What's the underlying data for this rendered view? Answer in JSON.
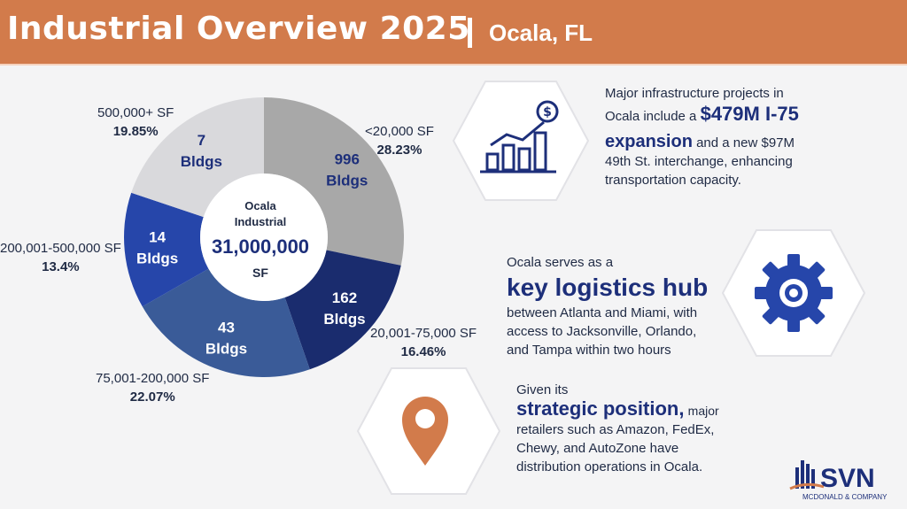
{
  "header": {
    "title": "Industrial Overview 2025",
    "location": "Ocala, FL",
    "bg_color": "#d27b4b"
  },
  "chart_data": {
    "type": "pie",
    "center": {
      "line1": "Ocala",
      "line2": "Industrial",
      "value": "31,000,000",
      "unit": "SF"
    },
    "slices": [
      {
        "category": "<20,000 SF",
        "percent": 28.23,
        "percent_label": "28.23%",
        "count": "996",
        "count_unit": "Bldgs",
        "color": "#a8a8a8"
      },
      {
        "category": "20,001-75,000 SF",
        "percent": 16.46,
        "percent_label": "16.46%",
        "count": "162",
        "count_unit": "Bldgs",
        "color": "#1a2c6e"
      },
      {
        "category": "75,001-200,000 SF",
        "percent": 22.07,
        "percent_label": "22.07%",
        "count": "43",
        "count_unit": "Bldgs",
        "color": "#3a5b98"
      },
      {
        "category": "200,001-500,000 SF",
        "percent": 13.4,
        "percent_label": "13.4%",
        "count": "14",
        "count_unit": "Bldgs",
        "color": "#2646aa"
      },
      {
        "category": "500,000+ SF",
        "percent": 19.85,
        "percent_label": "19.85%",
        "count": "7",
        "count_unit": "Bldgs",
        "color": "#d9d9dc"
      }
    ]
  },
  "panels": {
    "infrastructure": {
      "text_a": "Major infrastructure projects in",
      "text_b": "Ocala include a",
      "highlight_a": "$479M I-75",
      "highlight_b": "expansion",
      "text_c": "and a new $97M",
      "text_d": "49th St. interchange, enhancing",
      "text_e": "transportation capacity.",
      "icon": "growth-chart-dollar-icon"
    },
    "logistics": {
      "text_a": "Ocala serves as a",
      "highlight": "key logistics hub",
      "text_b": "between Atlanta and Miami, with",
      "text_c": "access to Jacksonville, Orlando,",
      "text_d": "and Tampa within two hours",
      "icon": "gear-icon"
    },
    "position": {
      "text_a": "Given its",
      "highlight": "strategic position,",
      "text_b": "major",
      "text_c": "retailers such as Amazon, FedEx,",
      "text_d": "Chewy, and AutoZone have",
      "text_e": "distribution operations in Ocala.",
      "icon": "location-pin-icon"
    }
  },
  "logo": {
    "name": "SVN",
    "sub": "MCDONALD & COMPANY",
    "colors": {
      "navy": "#1d2f7a",
      "orange": "#d27b4b"
    }
  }
}
